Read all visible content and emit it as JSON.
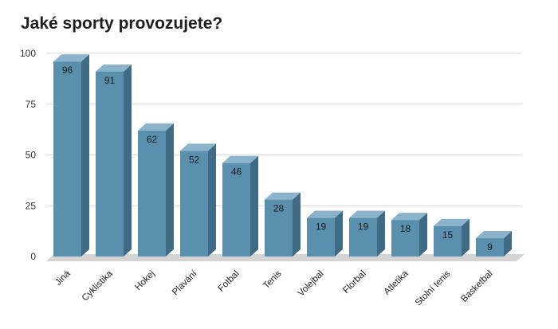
{
  "chart_data": {
    "type": "bar",
    "title": "Jaké sporty provozujete?",
    "categories": [
      "Jiná",
      "Cyklistika",
      "Hokej",
      "Plavání",
      "Fotbal",
      "Tenis",
      "Volejbal",
      "Florbal",
      "Atletika",
      "Stolní tenis",
      "Basketbal"
    ],
    "values": [
      96,
      91,
      62,
      52,
      46,
      28,
      19,
      19,
      18,
      15,
      9
    ],
    "ylim": [
      0,
      100
    ],
    "yticks": [
      0,
      25,
      50,
      75,
      100
    ],
    "xlabel": "",
    "ylabel": "",
    "grid": true,
    "legend": "none",
    "style": "3d-column",
    "colors": {
      "bar_front": "#5b8fae",
      "bar_top": "#8bb4cc",
      "bar_side": "#3f6b85",
      "floor": "#d4d4d4",
      "grid": "#d9d9d9"
    }
  }
}
